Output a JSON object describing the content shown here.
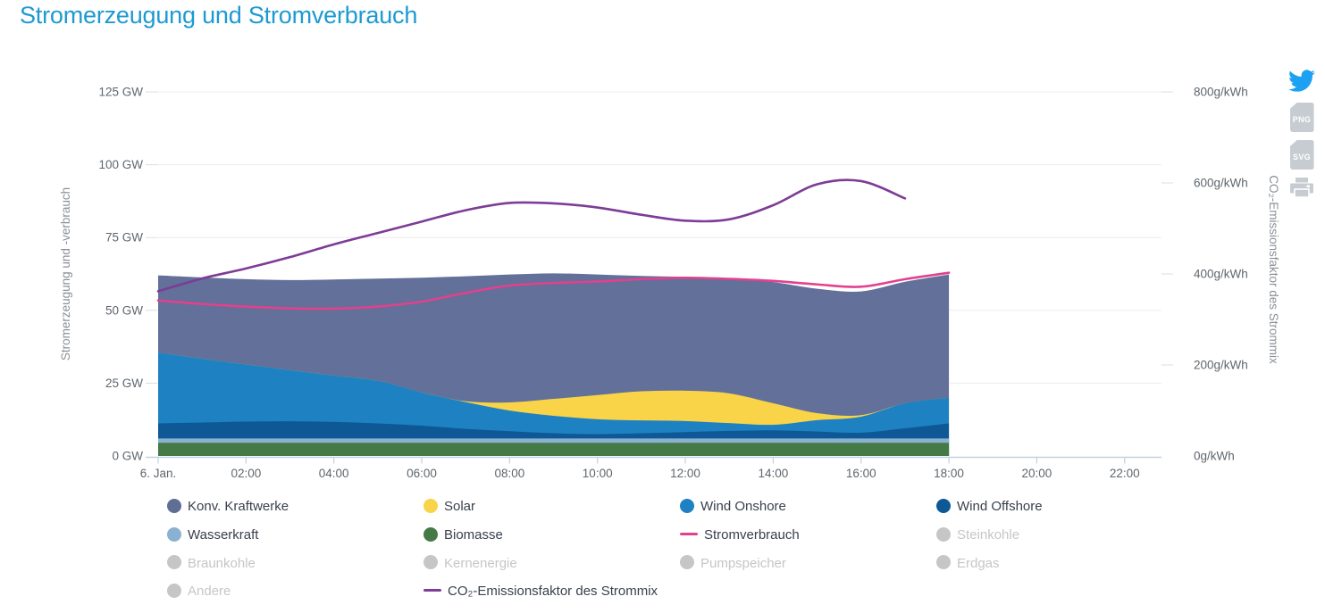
{
  "title": "Stromerzeugung und Stromverbrauch",
  "axes": {
    "left": {
      "title": "Stromerzeugung und -verbrauch",
      "tick_values": [
        0,
        25,
        50,
        75,
        100,
        125
      ],
      "tick_labels": [
        "0 GW",
        "25 GW",
        "50 GW",
        "75 GW",
        "100 GW",
        "125 GW"
      ]
    },
    "right": {
      "title": "CO₂-Emissionsfaktor des Strommix",
      "tick_values": [
        0,
        200,
        400,
        600,
        800
      ],
      "tick_labels": [
        "0g/kWh",
        "200g/kWh",
        "400g/kWh",
        "600g/kWh",
        "800g/kWh"
      ]
    },
    "x": {
      "tick_hours": [
        0,
        2,
        4,
        6,
        8,
        10,
        12,
        14,
        16,
        18,
        20,
        22
      ],
      "tick_labels": [
        "6. Jan.",
        "02:00",
        "04:00",
        "06:00",
        "08:00",
        "10:00",
        "12:00",
        "14:00",
        "16:00",
        "18:00",
        "20:00",
        "22:00"
      ]
    }
  },
  "chart_data": {
    "type": "area",
    "title": "Stromerzeugung und Stromverbrauch",
    "x_unit": "hours since midnight, 6. Jan.",
    "x_hours": [
      0,
      1,
      2,
      3,
      4,
      5,
      6,
      7,
      8,
      9,
      10,
      11,
      12,
      13,
      14,
      15,
      16,
      17,
      18
    ],
    "stack_series": [
      {
        "name": "Biomasse",
        "color": "#457a47",
        "values": [
          4.5,
          4.5,
          4.5,
          4.5,
          4.5,
          4.5,
          4.5,
          4.5,
          4.5,
          4.5,
          4.5,
          4.5,
          4.5,
          4.5,
          4.5,
          4.5,
          4.5,
          4.5,
          4.5
        ]
      },
      {
        "name": "Wasserkraft",
        "color": "#8ab1d1",
        "values": [
          1.5,
          1.5,
          1.5,
          1.5,
          1.5,
          1.5,
          1.5,
          1.5,
          1.5,
          1.5,
          1.5,
          1.5,
          1.5,
          1.5,
          1.5,
          1.5,
          1.5,
          1.5,
          1.5
        ]
      },
      {
        "name": "Wind Offshore",
        "color": "#0f5896",
        "values": [
          5.2,
          5.5,
          5.8,
          5.9,
          5.7,
          5.2,
          4.4,
          3.3,
          2.5,
          1.8,
          1.5,
          1.8,
          2.2,
          2.6,
          2.8,
          2.4,
          2.0,
          3.5,
          5.2
        ]
      },
      {
        "name": "Wind Onshore",
        "color": "#1e82c2",
        "values": [
          24.3,
          21.9,
          19.6,
          17.6,
          15.9,
          14.6,
          11.4,
          9.2,
          7.1,
          6.0,
          5.1,
          4.4,
          3.8,
          2.7,
          1.9,
          3.9,
          5.5,
          8.6,
          8.8
        ]
      },
      {
        "name": "Solar",
        "color": "#f9d348",
        "values": [
          0,
          0,
          0,
          0,
          0,
          0,
          0,
          0.3,
          2.8,
          5.8,
          8.3,
          10.0,
          10.4,
          10.2,
          7.4,
          2.4,
          0.5,
          0,
          0
        ]
      },
      {
        "name": "Konv. Kraftwerke",
        "color": "#62709a",
        "values": [
          26.5,
          27.9,
          29.3,
          30.9,
          33.0,
          35.1,
          39.4,
          42.9,
          43.9,
          43.1,
          41.4,
          39.6,
          39.1,
          39.5,
          41.6,
          42.7,
          42.5,
          41.7,
          42.3
        ]
      }
    ],
    "line_series": [
      {
        "name": "Stromverbrauch",
        "color": "#e2418d",
        "axis": "left",
        "unit": "GW",
        "x_hours": [
          0,
          1,
          2,
          3,
          4,
          5,
          6,
          7,
          8,
          9,
          10,
          11,
          12,
          13,
          14,
          15,
          16,
          17,
          18
        ],
        "values": [
          53.4,
          52.2,
          51.3,
          50.7,
          50.6,
          51.3,
          53.0,
          56.0,
          58.5,
          59.4,
          59.9,
          60.7,
          61.2,
          60.8,
          60.1,
          58.9,
          58.1,
          60.7,
          62.9
        ]
      },
      {
        "name": "CO₂-Emissionsfaktor des Strommix",
        "color": "#7d3c96",
        "axis": "right",
        "unit": "g/kWh",
        "x_hours": [
          0,
          1,
          2,
          3,
          4,
          5,
          6,
          7,
          8,
          9,
          10,
          11,
          12,
          13,
          14,
          15,
          16,
          17
        ],
        "values": [
          362,
          390,
          412,
          437,
          465,
          490,
          515,
          540,
          556,
          555,
          546,
          530,
          517,
          520,
          551,
          597,
          604,
          566
        ]
      }
    ],
    "y_left": {
      "label": "Stromerzeugung und -verbrauch",
      "unit": "GW",
      "lim": [
        0,
        129
      ]
    },
    "y_right": {
      "label": "CO₂-Emissionsfaktor des Strommix",
      "unit": "g/kWh",
      "lim": [
        0,
        800
      ]
    },
    "grid": "horizontal lines at left-axis ticks",
    "legend_position": "bottom"
  },
  "legend": [
    {
      "label": "Konv. Kraftwerke",
      "marker": "circle",
      "color": "#5f6e94",
      "enabled": true
    },
    {
      "label": "Solar",
      "marker": "circle",
      "color": "#f9d348",
      "enabled": true
    },
    {
      "label": "Wind Onshore",
      "marker": "circle",
      "color": "#1e82c2",
      "enabled": true
    },
    {
      "label": "Wind Offshore",
      "marker": "circle",
      "color": "#0f5896",
      "enabled": true
    },
    {
      "label": "Wasserkraft",
      "marker": "circle",
      "color": "#8ab1d1",
      "enabled": true
    },
    {
      "label": "Biomasse",
      "marker": "circle",
      "color": "#457a47",
      "enabled": true
    },
    {
      "label": "Stromverbrauch",
      "marker": "line",
      "color": "#e2418d",
      "enabled": true
    },
    {
      "label": "Steinkohle",
      "marker": "circle",
      "color": "#c6c6c6",
      "enabled": false
    },
    {
      "label": "Braunkohle",
      "marker": "circle",
      "color": "#c6c6c6",
      "enabled": false
    },
    {
      "label": "Kernenergie",
      "marker": "circle",
      "color": "#c6c6c6",
      "enabled": false
    },
    {
      "label": "Pumpspeicher",
      "marker": "circle",
      "color": "#c6c6c6",
      "enabled": false
    },
    {
      "label": "Erdgas",
      "marker": "circle",
      "color": "#c6c6c6",
      "enabled": false
    },
    {
      "label": "Andere",
      "marker": "circle",
      "color": "#c6c6c6",
      "enabled": false
    },
    {
      "label": "CO₂-Emissionsfaktor des Strommix",
      "marker": "line",
      "color": "#7d3c96",
      "enabled": true
    }
  ],
  "export": {
    "twitter_color": "#1da1f2",
    "badge_color": "#c6ccd1",
    "png_label": "PNG",
    "svg_label": "SVG"
  },
  "colors": {
    "title": "#1d9ad2",
    "tick_label": "#5f666d",
    "axis_title": "#8b9097",
    "gridline": "#ececf2",
    "axis_line": "#c2d1df"
  }
}
